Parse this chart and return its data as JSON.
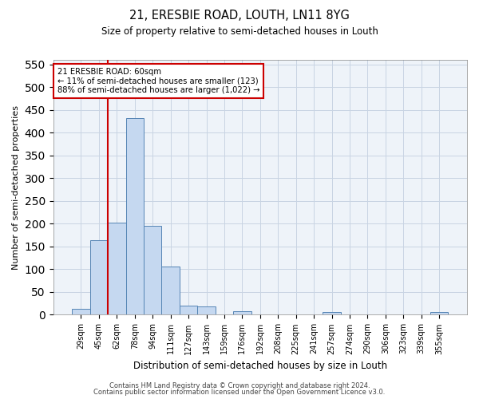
{
  "title": "21, ERESBIE ROAD, LOUTH, LN11 8YG",
  "subtitle": "Size of property relative to semi-detached houses in Louth",
  "xlabel": "Distribution of semi-detached houses by size in Louth",
  "ylabel": "Number of semi-detached properties",
  "categories": [
    "29sqm",
    "45sqm",
    "62sqm",
    "78sqm",
    "94sqm",
    "111sqm",
    "127sqm",
    "143sqm",
    "159sqm",
    "176sqm",
    "192sqm",
    "208sqm",
    "225sqm",
    "241sqm",
    "257sqm",
    "274sqm",
    "290sqm",
    "306sqm",
    "323sqm",
    "339sqm",
    "355sqm"
  ],
  "bar_heights": [
    13,
    163,
    203,
    432,
    196,
    106,
    20,
    18,
    0,
    8,
    0,
    1,
    0,
    0,
    6,
    0,
    0,
    0,
    0,
    0,
    6
  ],
  "bar_color": "#c5d8f0",
  "bar_edge_color": "#5585b5",
  "grid_color": "#c8d4e3",
  "background_color": "#eef3f9",
  "vline_index": 1.5,
  "vline_color": "#cc0000",
  "annotation_title": "21 ERESBIE ROAD: 60sqm",
  "annotation_line1": "← 11% of semi-detached houses are smaller (123)",
  "annotation_line2": "88% of semi-detached houses are larger (1,022) →",
  "annotation_box_color": "#cc0000",
  "ylim": [
    0,
    560
  ],
  "yticks": [
    0,
    50,
    100,
    150,
    200,
    250,
    300,
    350,
    400,
    450,
    500,
    550
  ],
  "footer_line1": "Contains HM Land Registry data © Crown copyright and database right 2024.",
  "footer_line2": "Contains public sector information licensed under the Open Government Licence v3.0."
}
